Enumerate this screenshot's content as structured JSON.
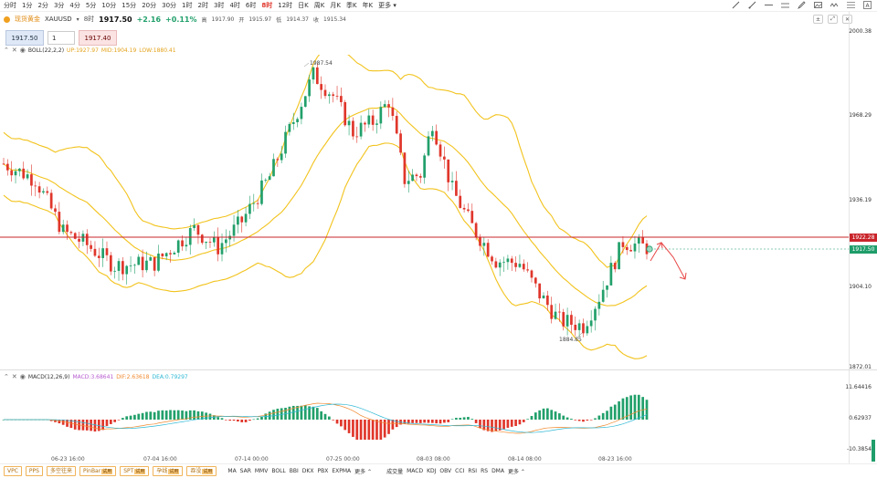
{
  "timeframes": [
    "分时",
    "1分",
    "2分",
    "3分",
    "4分",
    "5分",
    "10分",
    "15分",
    "20分",
    "30分",
    "1时",
    "2时",
    "3时",
    "4时",
    "6时",
    "8时",
    "12时",
    "日K",
    "周K",
    "月K",
    "季K",
    "年K",
    "更多"
  ],
  "active_timeframe": "8时",
  "instrument": {
    "name": "现货黄金",
    "code": "XAUUSD",
    "interval": "8时",
    "last": "1917.50",
    "change": "+2.16",
    "change_pct": "+0.11%",
    "high_label": "高",
    "high": "1917.90",
    "open_label": "开",
    "open": "1915.97",
    "low_label": "低",
    "low": "1914.37",
    "close_label": "收",
    "close": "1915.34"
  },
  "order": {
    "buy_price": "1917.50",
    "qty": "1",
    "sell_price": "1917.40"
  },
  "boll": {
    "name": "BOLL(22,2,2)",
    "up": "UP:1927.97",
    "mid": "MID:1904.19",
    "low": "LOW:1880.41"
  },
  "macd": {
    "name": "MACD(12,26,9)",
    "macd": "MACD:3.68641",
    "dif": "DIF:2.63618",
    "dea": "DEA:0.79297"
  },
  "price_axis": [
    "2000.38",
    "1968.29",
    "1936.19",
    "1904.10",
    "1872.01"
  ],
  "macd_axis": [
    "11.64416",
    "0.62937",
    "-10.3854"
  ],
  "price_tags": {
    "red_line": "1922.28",
    "current": "1917.50"
  },
  "annotations": {
    "high": "1987.54",
    "low": "1884.85"
  },
  "dates": [
    "06-23 16:00",
    "07-04 16:00",
    "07-14 00:00",
    "07-25 00:00",
    "08-03 08:00",
    "08-14 08:00",
    "08-23 16:00"
  ],
  "bottom_orange": [
    {
      "label": "VPC",
      "tag": ""
    },
    {
      "label": "PPS",
      "tag": ""
    },
    {
      "label": "多空往来",
      "tag": ""
    },
    {
      "label": "PinBar",
      "tag": "试用"
    },
    {
      "label": "SPT",
      "tag": "试用"
    },
    {
      "label": "孕线",
      "tag": "试用"
    },
    {
      "label": "吞没",
      "tag": "试用"
    }
  ],
  "bottom_main": [
    "MA",
    "SAR",
    "MMV",
    "BOLL",
    "BBI",
    "DKX",
    "PBX",
    "EXPMA",
    "更多"
  ],
  "bottom_sub": [
    "成交量",
    "MACD",
    "KDJ",
    "OBV",
    "CCI",
    "RSI",
    "RS",
    "DMA",
    "更多"
  ],
  "colors": {
    "up": "#22a06b",
    "down": "#e0362b",
    "boll": "#f2c31d",
    "red_line": "#c9252b",
    "current_tag": "#1f9d6a",
    "macd_dif": "#f08a30",
    "macd_dea": "#2eb8d4"
  }
}
